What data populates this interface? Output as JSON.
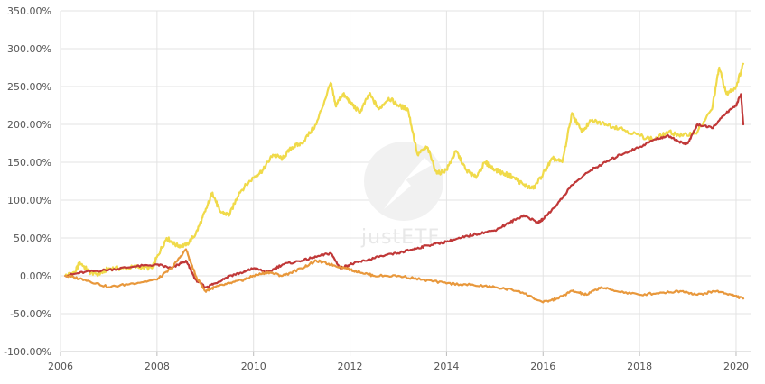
{
  "chart_data": {
    "type": "line",
    "title": "",
    "xlabel": "",
    "ylabel": "",
    "x_range": [
      2006,
      2020.3
    ],
    "ylim": [
      -100,
      350
    ],
    "y_ticks": [
      -100,
      -50,
      0,
      50,
      100,
      150,
      200,
      250,
      300,
      350
    ],
    "y_tick_labels": [
      "-100.00%",
      "-50.00%",
      "0.00%",
      "50.00%",
      "100.00%",
      "150.00%",
      "200.00%",
      "250.00%",
      "300.00%",
      "350.00%"
    ],
    "x_ticks": [
      2006,
      2008,
      2010,
      2012,
      2014,
      2016,
      2018,
      2020
    ],
    "x_tick_labels": [
      "2006",
      "2008",
      "2010",
      "2012",
      "2014",
      "2016",
      "2018",
      "2020"
    ],
    "grid": true,
    "legend": "none",
    "series": [
      {
        "color": "#f0da4a",
        "x": [
          2006.1,
          2006.3,
          2006.4,
          2006.6,
          2006.8,
          2007.0,
          2007.3,
          2007.6,
          2007.9,
          2008.0,
          2008.2,
          2008.4,
          2008.6,
          2008.8,
          2009.0,
          2009.15,
          2009.3,
          2009.5,
          2009.7,
          2010.0,
          2010.2,
          2010.4,
          2010.6,
          2010.8,
          2011.0,
          2011.3,
          2011.6,
          2011.7,
          2011.85,
          2012.0,
          2012.2,
          2012.4,
          2012.6,
          2012.8,
          2013.0,
          2013.2,
          2013.4,
          2013.6,
          2013.8,
          2014.0,
          2014.2,
          2014.4,
          2014.6,
          2014.8,
          2015.0,
          2015.2,
          2015.4,
          2015.6,
          2015.8,
          2016.0,
          2016.2,
          2016.4,
          2016.6,
          2016.8,
          2017.0,
          2017.3,
          2017.6,
          2018.0,
          2018.3,
          2018.6,
          2018.9,
          2019.2,
          2019.5,
          2019.65,
          2019.8,
          2020.0,
          2020.15
        ],
        "values": [
          0,
          5,
          18,
          5,
          2,
          10,
          10,
          12,
          10,
          25,
          50,
          40,
          40,
          55,
          85,
          110,
          85,
          80,
          110,
          130,
          140,
          160,
          155,
          170,
          175,
          200,
          255,
          225,
          240,
          230,
          215,
          240,
          220,
          235,
          225,
          220,
          160,
          170,
          135,
          140,
          165,
          140,
          130,
          150,
          140,
          135,
          130,
          120,
          115,
          135,
          155,
          150,
          215,
          190,
          205,
          200,
          195,
          185,
          180,
          190,
          185,
          190,
          220,
          275,
          240,
          250,
          280
        ]
      },
      {
        "color": "#c03838",
        "x": [
          2006.1,
          2006.5,
          2007.0,
          2007.5,
          2008.0,
          2008.3,
          2008.6,
          2008.8,
          2009.0,
          2009.2,
          2009.5,
          2009.8,
          2010.0,
          2010.3,
          2010.6,
          2011.0,
          2011.3,
          2011.6,
          2011.8,
          2012.0,
          2012.3,
          2012.6,
          2013.0,
          2013.3,
          2013.6,
          2014.0,
          2014.3,
          2014.6,
          2015.0,
          2015.3,
          2015.6,
          2015.9,
          2016.0,
          2016.3,
          2016.6,
          2017.0,
          2017.3,
          2017.6,
          2018.0,
          2018.3,
          2018.6,
          2018.9,
          2019.0,
          2019.2,
          2019.5,
          2019.8,
          2020.0,
          2020.1,
          2020.15
        ],
        "values": [
          0,
          5,
          8,
          12,
          15,
          10,
          20,
          -5,
          -15,
          -10,
          0,
          5,
          10,
          5,
          15,
          20,
          25,
          30,
          10,
          15,
          20,
          25,
          30,
          35,
          40,
          45,
          50,
          55,
          60,
          70,
          80,
          70,
          75,
          95,
          120,
          140,
          150,
          160,
          170,
          180,
          185,
          175,
          175,
          200,
          195,
          215,
          225,
          240,
          200
        ]
      },
      {
        "color": "#e8983c",
        "x": [
          2006.1,
          2006.5,
          2007.0,
          2007.5,
          2008.0,
          2008.3,
          2008.6,
          2008.8,
          2009.0,
          2009.2,
          2009.5,
          2009.8,
          2010.0,
          2010.3,
          2010.6,
          2011.0,
          2011.3,
          2011.6,
          2011.9,
          2012.2,
          2012.5,
          2013.0,
          2013.5,
          2014.0,
          2014.5,
          2015.0,
          2015.5,
          2016.0,
          2016.3,
          2016.6,
          2016.9,
          2017.2,
          2017.5,
          2018.0,
          2018.5,
          2018.9,
          2019.2,
          2019.6,
          2019.9,
          2020.15
        ],
        "values": [
          0,
          -5,
          -15,
          -10,
          -5,
          10,
          35,
          0,
          -20,
          -15,
          -10,
          -5,
          0,
          5,
          0,
          10,
          20,
          15,
          10,
          5,
          0,
          0,
          -5,
          -10,
          -12,
          -15,
          -20,
          -35,
          -30,
          -20,
          -25,
          -15,
          -20,
          -25,
          -22,
          -20,
          -25,
          -20,
          -25,
          -30
        ]
      }
    ]
  }
}
